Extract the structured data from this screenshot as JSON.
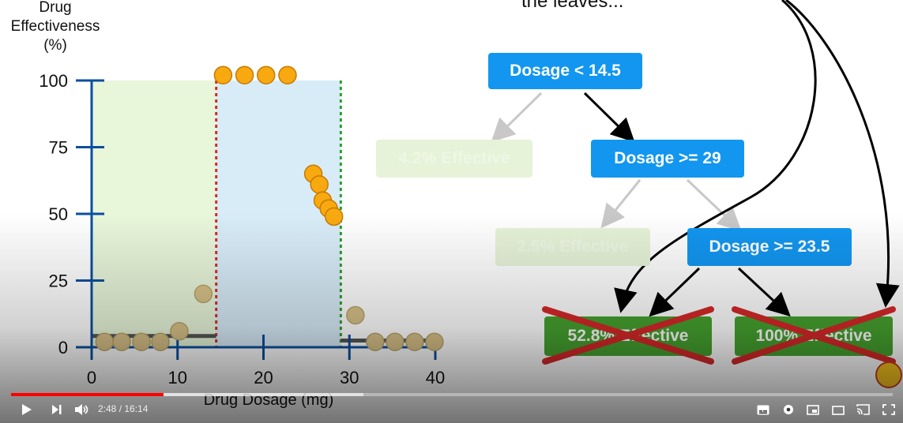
{
  "chart_data": {
    "type": "scatter",
    "ylabel_lines": [
      "Drug",
      "Effectiveness",
      "(%)"
    ],
    "xlabel": "Drug Dosage (mg)",
    "x_ticks": [
      "0",
      "10",
      "20",
      "30",
      "40"
    ],
    "y_ticks": [
      "0",
      "25",
      "50",
      "75",
      "100"
    ],
    "xlim": [
      0,
      40
    ],
    "ylim": [
      0,
      100
    ],
    "points": [
      {
        "x": 1.5,
        "y": 2,
        "faded": true
      },
      {
        "x": 3.5,
        "y": 2,
        "faded": true
      },
      {
        "x": 5.8,
        "y": 2,
        "faded": true
      },
      {
        "x": 8.0,
        "y": 2,
        "faded": true
      },
      {
        "x": 10.2,
        "y": 6,
        "faded": true
      },
      {
        "x": 13.0,
        "y": 20,
        "faded": true
      },
      {
        "x": 15.3,
        "y": 102,
        "faded": false
      },
      {
        "x": 17.8,
        "y": 102,
        "faded": false
      },
      {
        "x": 20.3,
        "y": 102,
        "faded": false
      },
      {
        "x": 22.8,
        "y": 102,
        "faded": false
      },
      {
        "x": 25.8,
        "y": 65,
        "faded": false
      },
      {
        "x": 26.5,
        "y": 61,
        "faded": false
      },
      {
        "x": 26.9,
        "y": 55,
        "faded": false
      },
      {
        "x": 27.6,
        "y": 52,
        "faded": false
      },
      {
        "x": 28.2,
        "y": 49,
        "faded": false
      },
      {
        "x": 30.7,
        "y": 12,
        "faded": true
      },
      {
        "x": 33.0,
        "y": 2,
        "faded": true
      },
      {
        "x": 35.3,
        "y": 2,
        "faded": true
      },
      {
        "x": 37.6,
        "y": 2,
        "faded": true
      },
      {
        "x": 39.9,
        "y": 2,
        "faded": true
      }
    ],
    "thresholds": [
      {
        "x": 14.5,
        "color": "#d42a2a"
      },
      {
        "x": 29,
        "color": "#2aa02a"
      }
    ],
    "regions": [
      {
        "from": 0,
        "to": 14.5,
        "color": "#e8f6da"
      },
      {
        "from": 14.5,
        "to": 29,
        "color": "#d8ecf8"
      }
    ],
    "prediction_lines": [
      {
        "from": 0,
        "to": 14.5,
        "y": 4.2
      },
      {
        "from": 29,
        "to": 40,
        "y": 2.5
      }
    ],
    "grid": false
  },
  "tree": {
    "top_caption": "the leaves...",
    "root": "Dosage < 14.5",
    "leaf_left": "4.2% Effective",
    "node2": "Dosage >= 29",
    "leaf_mid": "2.5% Effective",
    "node3": "Dosage >= 23.5",
    "leaf_a": "52.8% Effective",
    "leaf_b": "100% Effective",
    "colors": {
      "node": "#1296f0",
      "leaf": "#46a22f",
      "cross": "#d62828"
    }
  },
  "player": {
    "time": "2:48 / 16:14",
    "progress_fraction": 0.173,
    "buffered_fraction": 0.4,
    "icons": [
      "play-icon",
      "next-icon",
      "volume-icon",
      "subtitles-icon",
      "settings-icon",
      "miniplayer-icon",
      "theater-icon",
      "cast-icon",
      "fullscreen-icon"
    ],
    "accent": "#ff0000"
  }
}
